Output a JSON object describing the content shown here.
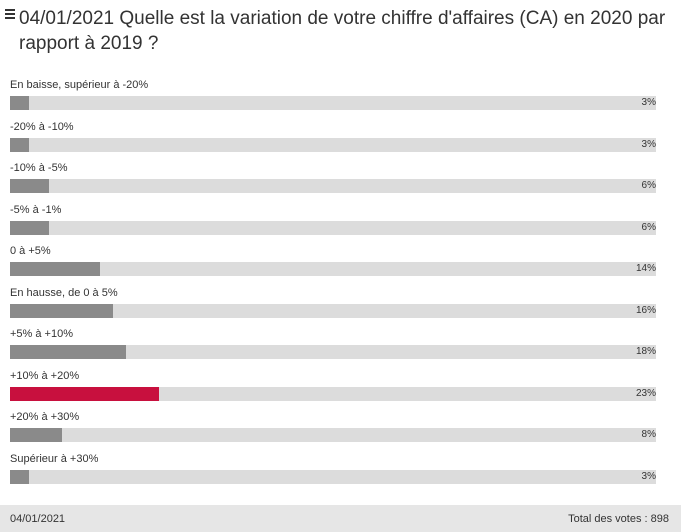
{
  "title": "04/01/2021 Quelle est la variation de votre chiffre d'affaires (CA) en 2020 par rapport à 2019 ?",
  "colors": {
    "bar": "#8a8a8a",
    "highlight": "#c8103e",
    "track": "#dcdcdc"
  },
  "chart_data": {
    "type": "bar",
    "orientation": "horizontal",
    "xlim": [
      0,
      100
    ],
    "categories": [
      "En baisse, supérieur à -20%",
      "-20% à -10%",
      "-10% à -5%",
      "-5% à -1%",
      "0 à +5%",
      "En hausse, de 0 à 5%",
      "+5% à +10%",
      "+10% à +20%",
      "+20% à +30%",
      "Supérieur à +30%"
    ],
    "values": [
      3,
      3,
      6,
      6,
      14,
      16,
      18,
      23,
      8,
      3
    ],
    "value_labels": [
      "3%",
      "3%",
      "6%",
      "6%",
      "14%",
      "16%",
      "18%",
      "23%",
      "8%",
      "3%"
    ],
    "highlight_index": 7
  },
  "footer": {
    "date": "04/01/2021",
    "total": "Total des votes : 898"
  }
}
